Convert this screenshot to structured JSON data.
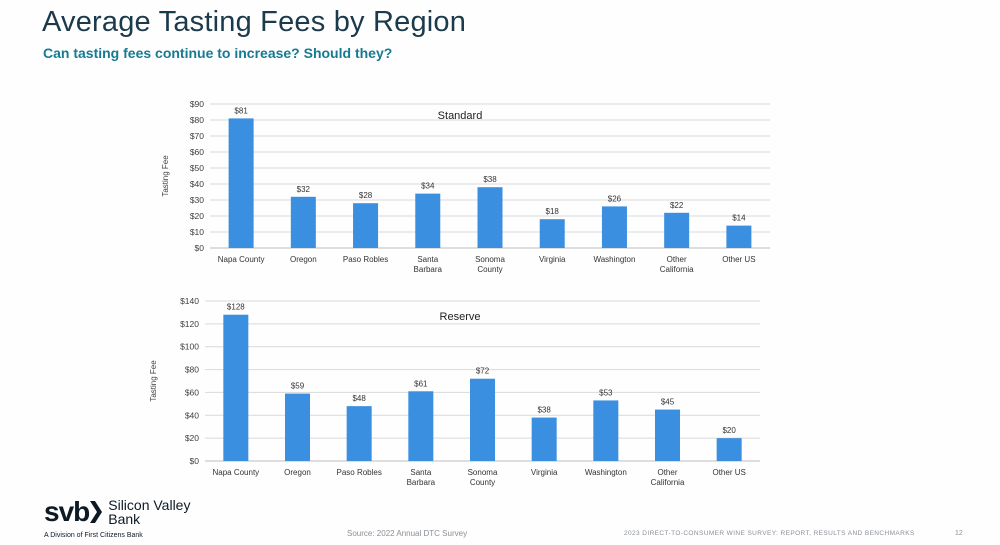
{
  "header": {
    "title": "Average Tasting Fees by Region",
    "subtitle": "Can tasting fees continue to increase? Should they?"
  },
  "colors": {
    "bar": "#3a8fe0",
    "title": "#1b3a4b",
    "subtitle": "#157a92",
    "grid": "#d9d9d9"
  },
  "chart_data": [
    {
      "type": "bar",
      "title": "Standard",
      "ylabel": "Tasting Fee",
      "ylim": [
        0,
        90
      ],
      "yticks": [
        "$0",
        "$10",
        "$20",
        "$30",
        "$40",
        "$50",
        "$60",
        "$70",
        "$80",
        "$90"
      ],
      "categories": [
        "Napa County",
        "Oregon",
        "Paso Robles",
        "Santa\nBarbara",
        "Sonoma\nCounty",
        "Virginia",
        "Washington",
        "Other\nCalifornia",
        "Other US"
      ],
      "values": [
        81,
        32,
        28,
        34,
        38,
        18,
        26,
        22,
        14
      ],
      "data_labels": [
        "$81",
        "$32",
        "$28",
        "$34",
        "$38",
        "$18",
        "$26",
        "$22",
        "$14"
      ],
      "grid": true
    },
    {
      "type": "bar",
      "title": "Reserve",
      "ylabel": "Tasting Fee",
      "ylim": [
        0,
        140
      ],
      "yticks": [
        "$0",
        "$20",
        "$40",
        "$60",
        "$80",
        "$100",
        "$120",
        "$140"
      ],
      "categories": [
        "Napa County",
        "Oregon",
        "Paso Robles",
        "Santa\nBarbara",
        "Sonoma\nCounty",
        "Virginia",
        "Washington",
        "Other\nCalifornia",
        "Other US"
      ],
      "values": [
        128,
        59,
        48,
        61,
        72,
        38,
        53,
        45,
        20
      ],
      "data_labels": [
        "$128",
        "$59",
        "$48",
        "$61",
        "$72",
        "$38",
        "$53",
        "$45",
        "$20"
      ],
      "grid": true
    }
  ],
  "footer": {
    "logo_text": "svb",
    "bank_name_line1": "Silicon Valley",
    "bank_name_line2": "Bank",
    "division": "A Division of First Citizens Bank",
    "source": "Source: 2022 Annual DTC Survey",
    "report": "2023 DIRECT-TO-CONSUMER WINE SURVEY: REPORT, RESULTS AND BENCHMARKS",
    "page": "12"
  }
}
